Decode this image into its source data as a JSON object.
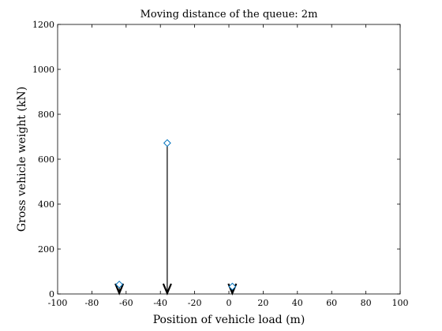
{
  "chart_data": {
    "type": "stem",
    "title": "Moving distance of the queue: 2m",
    "xlabel": "Position of vehicle load (m)",
    "ylabel": "Gross vehicle weight (kN)",
    "xlim": [
      -100,
      100
    ],
    "ylim": [
      0,
      1200
    ],
    "xticks": [
      -100,
      -80,
      -60,
      -40,
      -20,
      0,
      20,
      40,
      60,
      80,
      100
    ],
    "yticks": [
      0,
      200,
      400,
      600,
      800,
      1000,
      1200
    ],
    "grid": false,
    "x": [
      -64,
      -36,
      2
    ],
    "y": [
      42,
      672,
      33
    ],
    "marker": "diamond",
    "marker_color": "#0072BD",
    "stem_color": "#000000",
    "load_arrows": true
  }
}
